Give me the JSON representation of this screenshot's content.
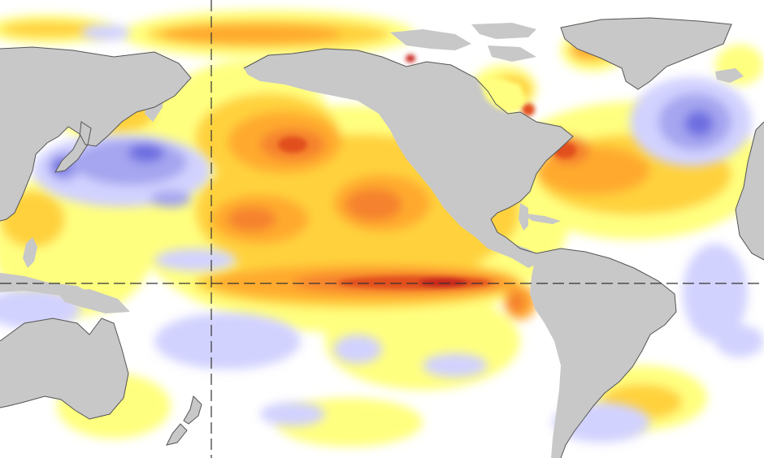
{
  "map": {
    "type": "sea-surface-temperature-anomaly",
    "projection": "equirectangular",
    "central_region": "Pacific Ocean",
    "reference_lines": [
      "equator",
      "date-line"
    ],
    "colors": {
      "ocean_neutral": "#ffffff",
      "land": "#c8c8c8",
      "coastline": "#555555",
      "warm_1": "#ffff7f",
      "warm_2": "#ffd23c",
      "warm_3": "#ffaa2d",
      "warm_4": "#f5822d",
      "warm_5": "#e1501e",
      "warm_6": "#c8281e",
      "cool_1": "#d2d2ff",
      "cool_2": "#a5a5f0",
      "cool_3": "#6e6ee1",
      "reference_line": "#333333"
    }
  }
}
